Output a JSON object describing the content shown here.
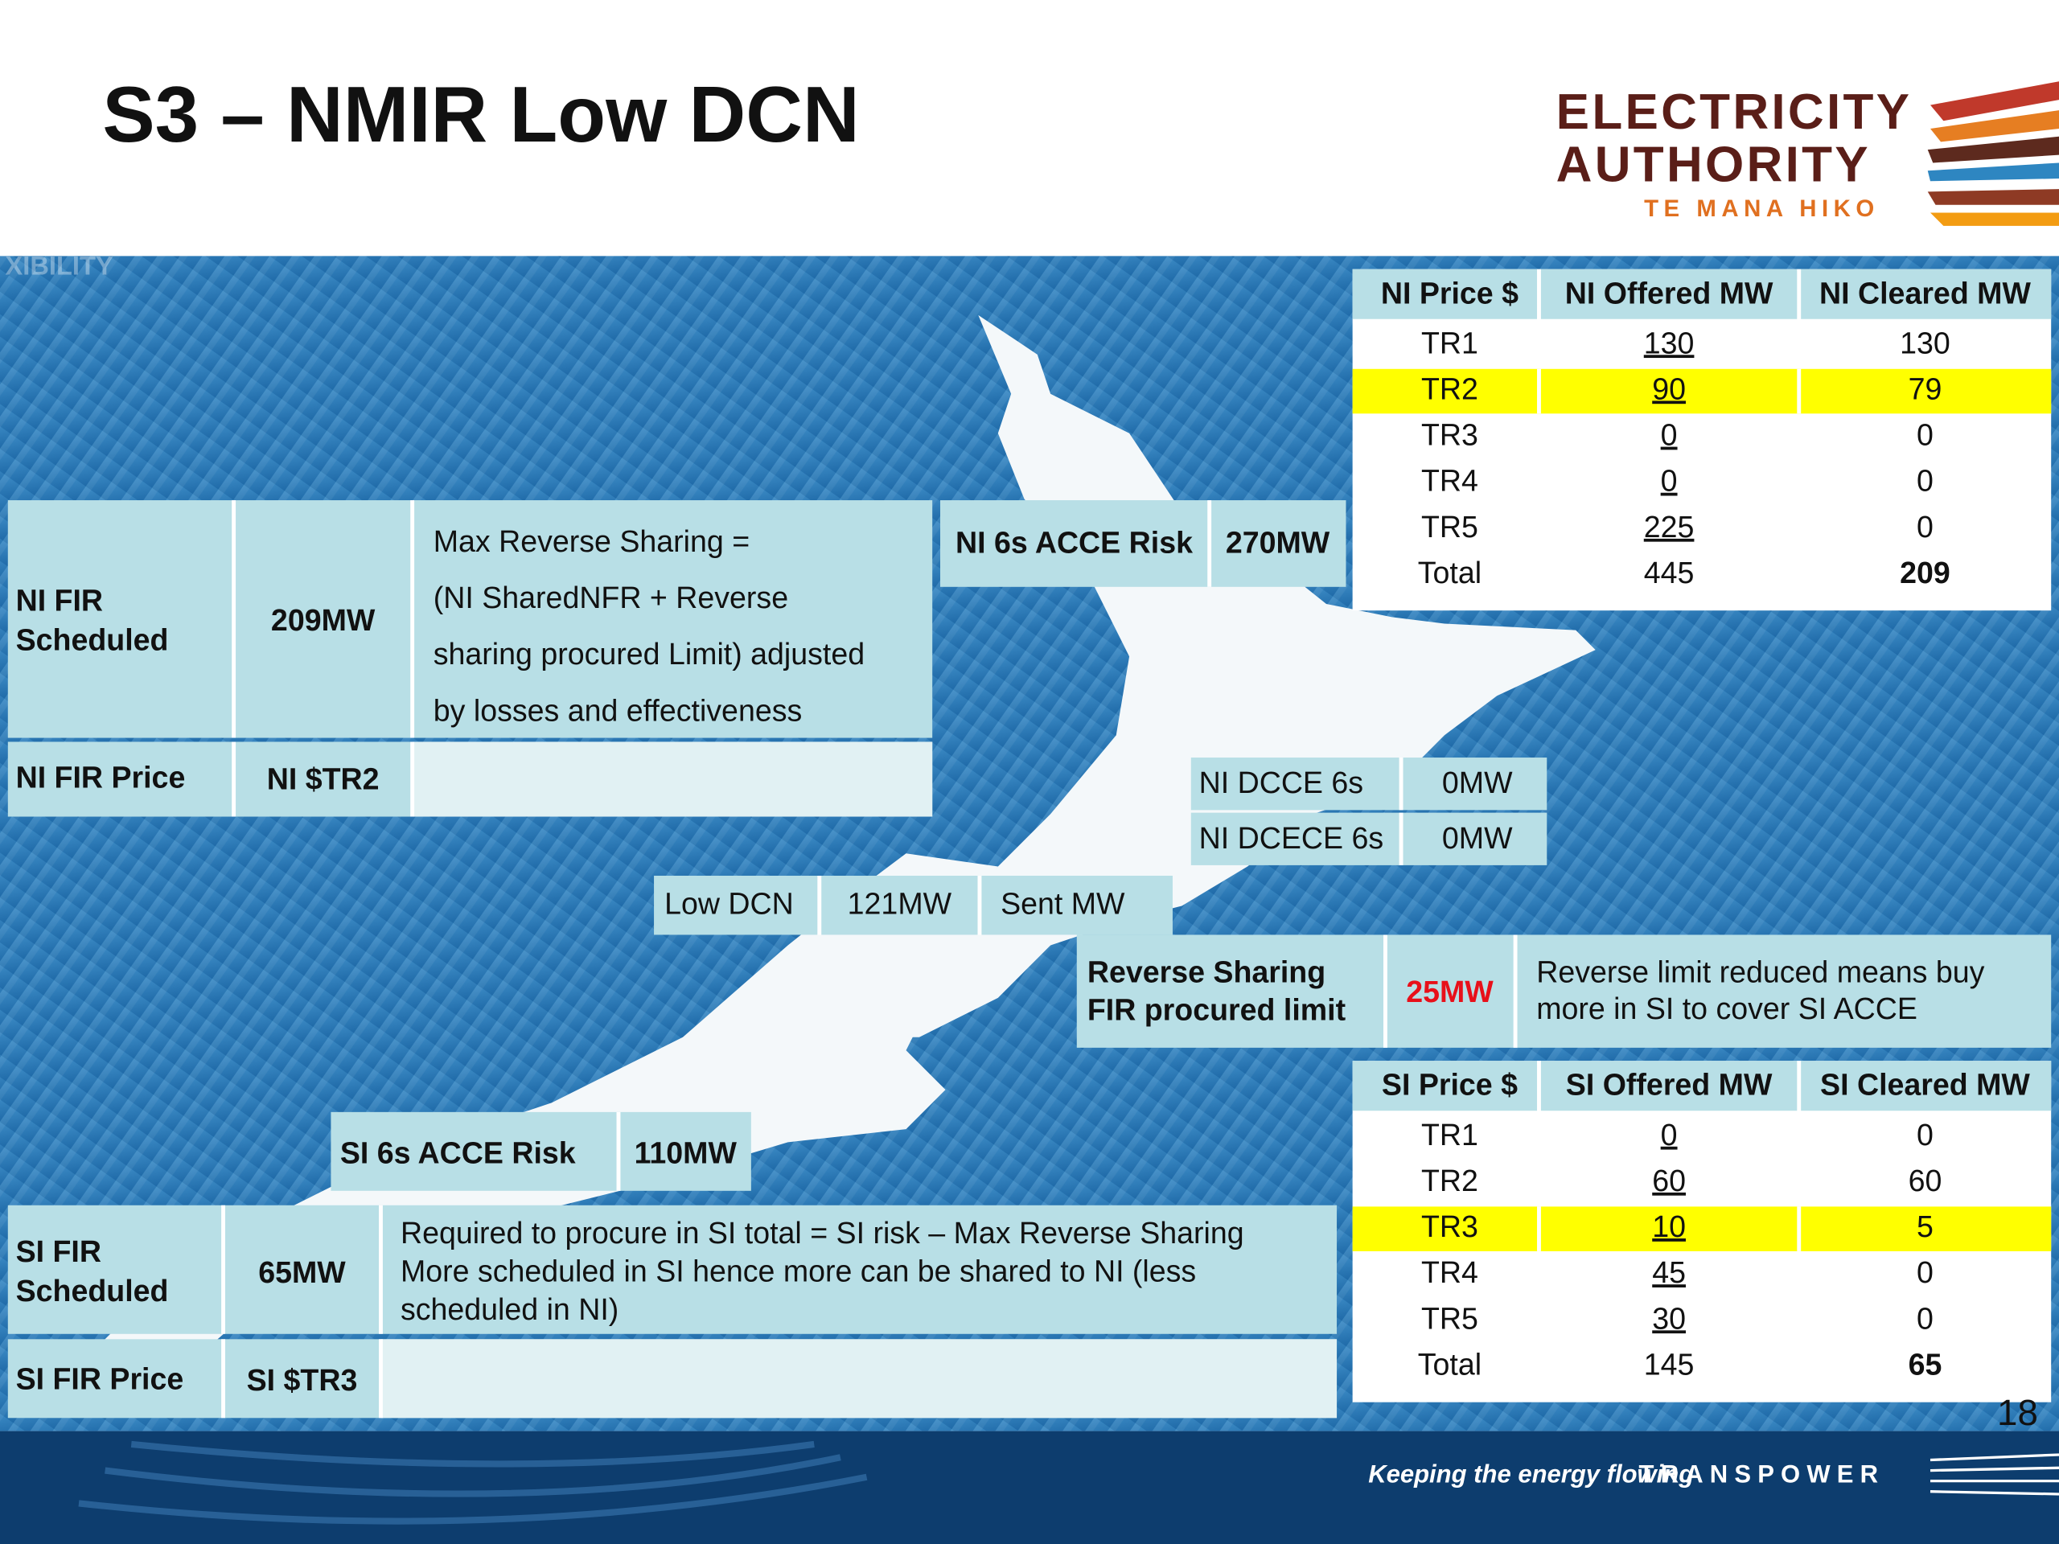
{
  "title": "S3 – NMIR Low DCN",
  "logo": {
    "line1": "ELECTRICITY",
    "line2": "AUTHORITY",
    "line3": "TE MANA HIKO"
  },
  "map_label": "XIBILITY",
  "ni_table": {
    "headers": [
      "NI Price $",
      "NI Offered MW",
      "NI Cleared MW"
    ],
    "rows": [
      [
        "TR1",
        "130",
        "130"
      ],
      [
        "TR2",
        "90",
        "79"
      ],
      [
        "TR3",
        "0",
        "0"
      ],
      [
        "TR4",
        "0",
        "0"
      ],
      [
        "TR5",
        "225",
        "0"
      ],
      [
        "Total",
        "445",
        "209"
      ]
    ],
    "highlight_row": 1
  },
  "si_table": {
    "headers": [
      "SI Price $",
      "SI Offered MW",
      "SI Cleared MW"
    ],
    "rows": [
      [
        "TR1",
        "0",
        "0"
      ],
      [
        "TR2",
        "60",
        "60"
      ],
      [
        "TR3",
        "10",
        "5"
      ],
      [
        "TR4",
        "45",
        "0"
      ],
      [
        "TR5",
        "30",
        "0"
      ],
      [
        "Total",
        "145",
        "65"
      ]
    ],
    "highlight_row": 2
  },
  "ni_fir": {
    "label": [
      "NI FIR",
      "Scheduled"
    ],
    "value": "209MW",
    "note": [
      "Max Reverse Sharing =",
      "(NI SharedNFR + Reverse",
      "sharing procured Limit) adjusted",
      "by losses and effectiveness"
    ]
  },
  "ni_fir_price": {
    "label": "NI FIR Price",
    "value": "NI $TR2"
  },
  "ni_acce": {
    "label": "NI 6s ACCE Risk",
    "value": "270MW"
  },
  "dcce": [
    {
      "label": "NI DCCE 6s",
      "value": "0MW"
    },
    {
      "label": "NI DCECE 6s",
      "value": "0MW"
    }
  ],
  "low_dcn": [
    "Low DCN",
    "121MW",
    "Sent MW"
  ],
  "reverse": {
    "label": [
      "Reverse Sharing",
      "FIR procured limit"
    ],
    "value": "25MW",
    "note": [
      "Reverse limit reduced means buy",
      "more in SI to cover SI ACCE"
    ]
  },
  "si_acce": {
    "label": "SI 6s ACCE Risk",
    "value": "110MW"
  },
  "si_fir": {
    "label": [
      "SI FIR",
      "Scheduled"
    ],
    "value": "65MW",
    "note": [
      "Required to procure in SI total = SI risk – Max Reverse Sharing",
      "More scheduled in SI hence more can be shared to NI (less",
      "scheduled in NI)"
    ]
  },
  "si_fir_price": {
    "label": "SI FIR Price",
    "value": "SI $TR3"
  },
  "page_number": "18",
  "footer": {
    "tagline": "Keeping the energy flowing",
    "brand": "TRANSPOWER"
  }
}
